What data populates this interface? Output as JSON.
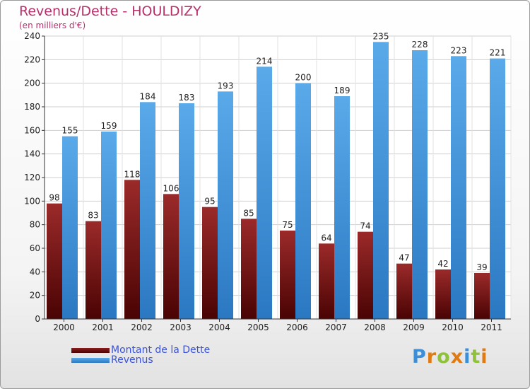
{
  "header": {
    "title": "Revenus/Dette - HOULDIZY",
    "subtitle": "(en milliers d'€)"
  },
  "colors": {
    "dette": "#7a1414",
    "revenus": "#4a9fe0",
    "title": "#b8306a",
    "legend_text": "#3a52d8"
  },
  "brand": {
    "letters": [
      {
        "ch": "P",
        "color": "#3a8fd8"
      },
      {
        "ch": "r",
        "color": "#e07a12"
      },
      {
        "ch": "o",
        "color": "#8fc23a"
      },
      {
        "ch": "x",
        "color": "#e07a12"
      },
      {
        "ch": "i",
        "color": "#3a8fd8"
      },
      {
        "ch": "t",
        "color": "#8fc23a"
      },
      {
        "ch": "i",
        "color": "#e07a12"
      }
    ]
  },
  "chart_data": {
    "type": "bar",
    "title": "Revenus/Dette - HOULDIZY",
    "subtitle": "(en milliers d'€)",
    "categories": [
      "2000",
      "2001",
      "2002",
      "2003",
      "2004",
      "2005",
      "2006",
      "2007",
      "2008",
      "2009",
      "2010",
      "2011"
    ],
    "series": [
      {
        "name": "Montant de la Dette",
        "color": "#7a1414",
        "values": [
          98,
          83,
          118,
          106,
          95,
          85,
          75,
          64,
          74,
          47,
          42,
          39
        ]
      },
      {
        "name": "Revenus",
        "color": "#4a9fe0",
        "values": [
          155,
          159,
          184,
          183,
          193,
          214,
          200,
          189,
          235,
          228,
          223,
          221
        ]
      }
    ],
    "ylim": [
      0,
      240
    ],
    "yticks": [
      0,
      20,
      40,
      60,
      80,
      100,
      120,
      140,
      160,
      180,
      200,
      220,
      240
    ],
    "grid": true,
    "legend_position": "bottom-left"
  }
}
